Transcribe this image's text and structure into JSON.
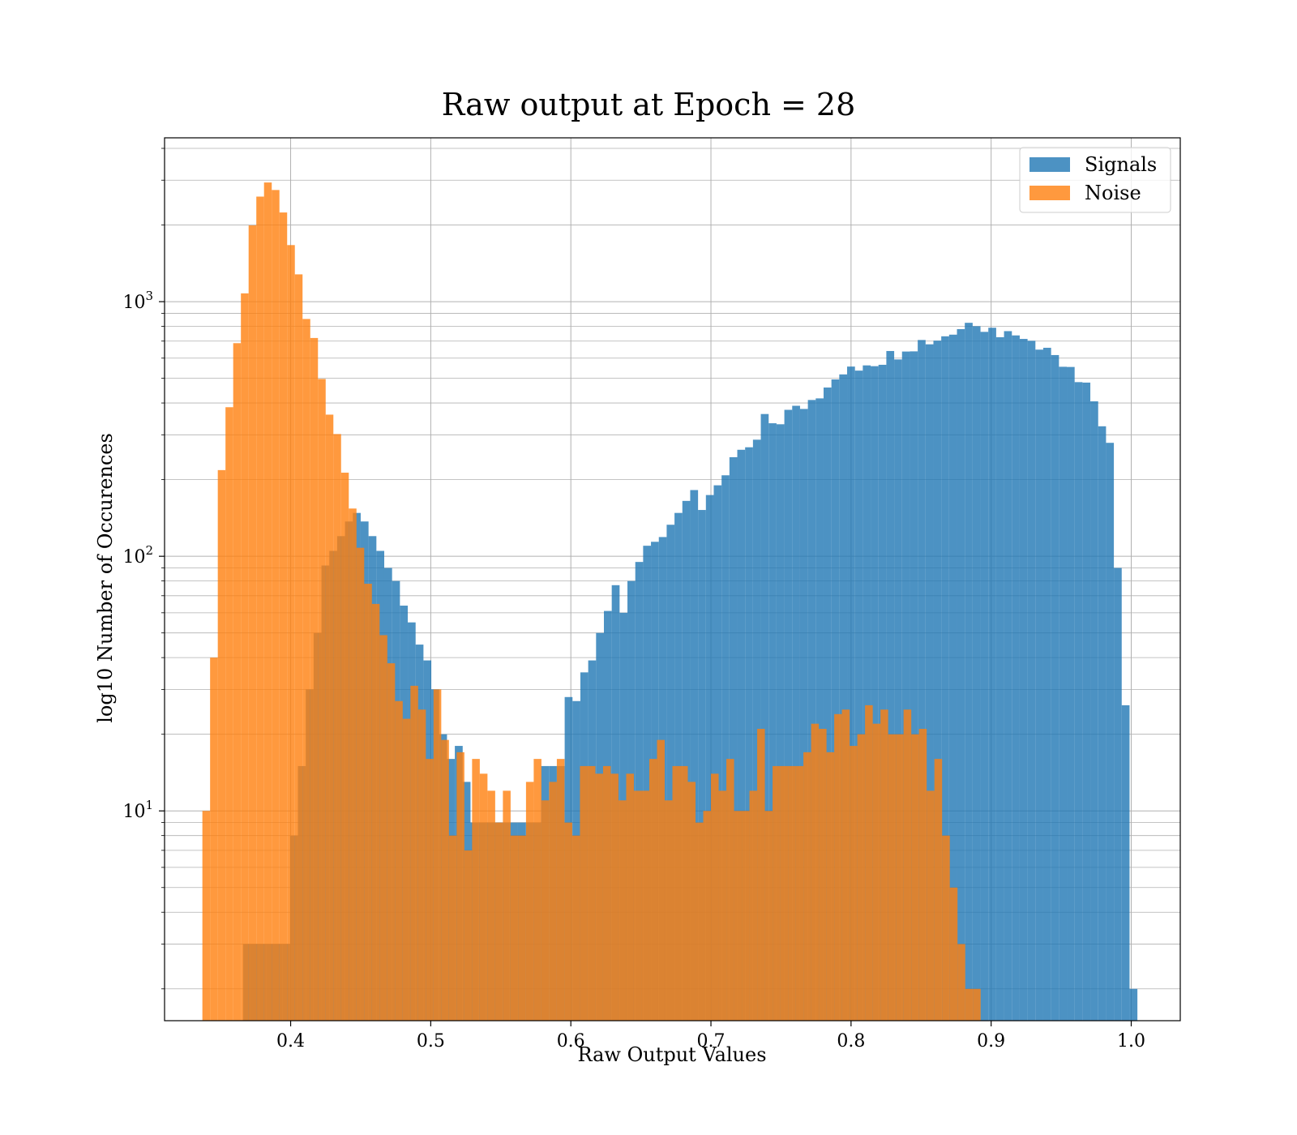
{
  "chart_data": {
    "type": "bar",
    "histogram": true,
    "title": "Raw output at Epoch = 28",
    "xlabel": "Raw Output Values",
    "ylabel": "log10 Number of Occurences",
    "xlim": [
      0.31,
      1.035
    ],
    "ylim": [
      1.5,
      4400
    ],
    "yscale": "log",
    "grid": true,
    "legend_position": "top-right",
    "x_ticks": [
      0.4,
      0.5,
      0.6,
      0.7,
      0.8,
      0.9,
      1.0
    ],
    "x_tick_labels": [
      "0.4",
      "0.5",
      "0.6",
      "0.7",
      "0.8",
      "0.9",
      "1.0"
    ],
    "y_ticks": [
      {
        "value": 10,
        "base": "10",
        "exp": "1"
      },
      {
        "value": 100,
        "base": "10",
        "exp": "2"
      },
      {
        "value": 1000,
        "base": "10",
        "exp": "3"
      }
    ],
    "series": [
      {
        "name": "Signals",
        "color": "#1f77b4",
        "opacity": 0.8,
        "bin_start": 0.366,
        "bin_width": 0.0056,
        "values": [
          3,
          3,
          3,
          3,
          3,
          3,
          8,
          15,
          30,
          50,
          92,
          105,
          120,
          137,
          148,
          137,
          120,
          105,
          90,
          80,
          64,
          55,
          45,
          39,
          30,
          20,
          16,
          18,
          13,
          9,
          9,
          9,
          9,
          9,
          9,
          9,
          9,
          9,
          15,
          15,
          15,
          28,
          27,
          35,
          39,
          50,
          61,
          77,
          60,
          80,
          95,
          110,
          114,
          119,
          133,
          148,
          165,
          182,
          152,
          174,
          190,
          208,
          245,
          262,
          268,
          287,
          362,
          333,
          330,
          376,
          390,
          379,
          411,
          417,
          460,
          495,
          518,
          556,
          536,
          562,
          558,
          565,
          640,
          593,
          637,
          638,
          707,
          680,
          703,
          731,
          742,
          780,
          826,
          801,
          761,
          790,
          725,
          766,
          737,
          714,
          702,
          648,
          659,
          617,
          555,
          554,
          483,
          481,
          406,
          324,
          279,
          90,
          26,
          2
        ]
      },
      {
        "name": "Noise",
        "color": "#ff7f0e",
        "opacity": 0.8,
        "bin_start": 0.337,
        "bin_width": 0.0055,
        "values": [
          10,
          40,
          218,
          385,
          687,
          1078,
          1993,
          2586,
          2938,
          2745,
          2240,
          1668,
          1280,
          855,
          720,
          497,
          360,
          302,
          213,
          154,
          108,
          78,
          65,
          49,
          38,
          27,
          23,
          31,
          25,
          16,
          30,
          19,
          8,
          17,
          7,
          16,
          14,
          12,
          9,
          12,
          8,
          8,
          13,
          16,
          11,
          13,
          16,
          9,
          8,
          15,
          15,
          14,
          15,
          14,
          11,
          14,
          12,
          12,
          16,
          19,
          11,
          15,
          15,
          13,
          9,
          10,
          14,
          12,
          16,
          10,
          10,
          12,
          21,
          10,
          15,
          15,
          15,
          15,
          17,
          22,
          21,
          17,
          24,
          25,
          18,
          20,
          26,
          22,
          25,
          20,
          20,
          25,
          20,
          21,
          12,
          16,
          8,
          5,
          3,
          2,
          2,
          1,
          1
        ]
      }
    ]
  }
}
